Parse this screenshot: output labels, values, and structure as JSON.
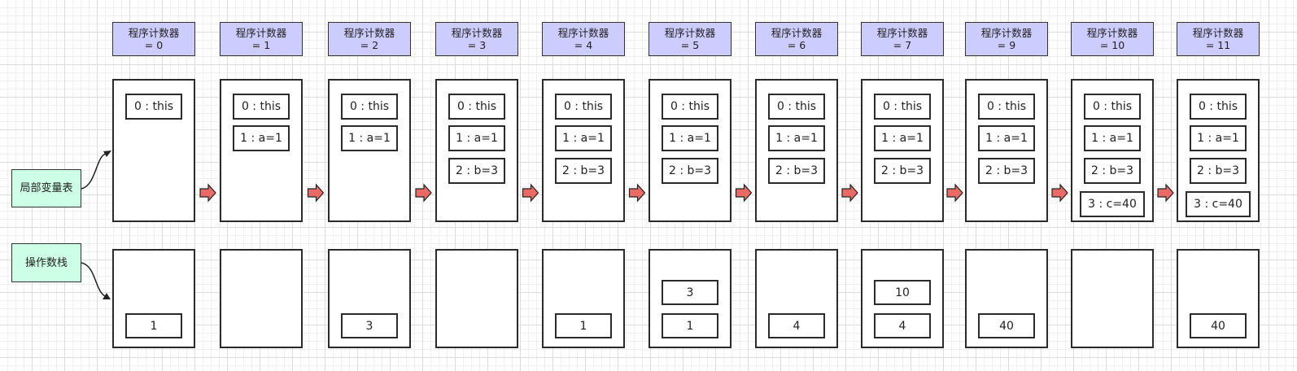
{
  "labels": {
    "locals": "局部变量表",
    "stack": "操作数栈"
  },
  "steps": [
    {
      "pc_label": "程序计数器",
      "pc_value": "= 0",
      "locals": [
        "0 : this"
      ],
      "stack": [
        "1"
      ]
    },
    {
      "pc_label": "程序计数器",
      "pc_value": "= 1",
      "locals": [
        "0 : this",
        "1 : a=1"
      ],
      "stack": []
    },
    {
      "pc_label": "程序计数器",
      "pc_value": "= 2",
      "locals": [
        "0 : this",
        "1 : a=1"
      ],
      "stack": [
        "3"
      ]
    },
    {
      "pc_label": "程序计数器",
      "pc_value": "= 3",
      "locals": [
        "0 : this",
        "1 : a=1",
        "2 : b=3"
      ],
      "stack": []
    },
    {
      "pc_label": "程序计数器",
      "pc_value": "= 4",
      "locals": [
        "0 : this",
        "1 : a=1",
        "2 : b=3"
      ],
      "stack": [
        "1"
      ]
    },
    {
      "pc_label": "程序计数器",
      "pc_value": "= 5",
      "locals": [
        "0 : this",
        "1 : a=1",
        "2 : b=3"
      ],
      "stack": [
        "3",
        "1"
      ]
    },
    {
      "pc_label": "程序计数器",
      "pc_value": "= 6",
      "locals": [
        "0 : this",
        "1 : a=1",
        "2 : b=3"
      ],
      "stack": [
        "4"
      ]
    },
    {
      "pc_label": "程序计数器",
      "pc_value": "= 7",
      "locals": [
        "0 : this",
        "1 : a=1",
        "2 : b=3"
      ],
      "stack": [
        "10",
        "4"
      ]
    },
    {
      "pc_label": "程序计数器",
      "pc_value": "= 9",
      "locals": [
        "0 : this",
        "1 : a=1",
        "2 : b=3"
      ],
      "stack": [
        "40"
      ]
    },
    {
      "pc_label": "程序计数器",
      "pc_value": "= 10",
      "locals": [
        "0 : this",
        "1 : a=1",
        "2 : b=3",
        "3 : c=40"
      ],
      "stack": []
    },
    {
      "pc_label": "程序计数器",
      "pc_value": "= 11",
      "locals": [
        "0 : this",
        "1 : a=1",
        "2 : b=3",
        "3 : c=40"
      ],
      "stack": [
        "40"
      ]
    }
  ],
  "colors": {
    "pc_fill": "#ccccff",
    "label_fill": "#ccffe6",
    "arrow_fill": "#ea6b66",
    "stroke": "#2b2b2b"
  }
}
